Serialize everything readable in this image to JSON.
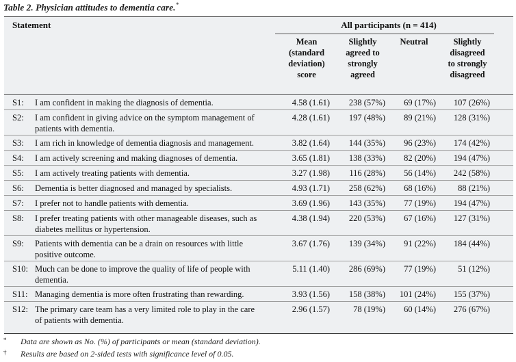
{
  "caption": {
    "text": "Table 2. Physician attitudes to dementia care.",
    "mark": "*"
  },
  "header": {
    "statement": "Statement",
    "group": "All participants (n = 414)",
    "columns": [
      [
        "Mean",
        "(standard",
        "deviation)",
        "score"
      ],
      [
        "Slightly",
        "agreed to",
        "strongly",
        "agreed"
      ],
      [
        "Neutral"
      ],
      [
        "Slightly",
        "disagreed",
        "to strongly",
        "disagreed"
      ]
    ]
  },
  "rows": [
    {
      "id": "S1:",
      "text": [
        "I am confident in making the diagnosis of dementia."
      ],
      "mean": "4.58 (1.61)",
      "agree": "238 (57%)",
      "neutral": "69 (17%)",
      "disagree": "107 (26%)"
    },
    {
      "id": "S2:",
      "text": [
        "I am confident in giving advice on the symptom management of",
        "patients with dementia."
      ],
      "mean": "4.28 (1.61)",
      "agree": "197 (48%)",
      "neutral": "89 (21%)",
      "disagree": "128 (31%)"
    },
    {
      "id": "S3:",
      "text": [
        "I am rich in knowledge of dementia diagnosis and management."
      ],
      "mean": "3.82 (1.64)",
      "agree": "144 (35%)",
      "neutral": "96 (23%)",
      "disagree": "174 (42%)"
    },
    {
      "id": "S4:",
      "text": [
        "I am actively screening and making diagnoses of dementia."
      ],
      "mean": "3.65 (1.81)",
      "agree": "138 (33%)",
      "neutral": "82 (20%)",
      "disagree": "194 (47%)"
    },
    {
      "id": "S5:",
      "text": [
        "I am actively treating patients with dementia."
      ],
      "mean": "3.27 (1.98)",
      "agree": "116 (28%)",
      "neutral": "56 (14%)",
      "disagree": "242 (58%)"
    },
    {
      "id": "S6:",
      "text": [
        "Dementia is better diagnosed and managed by specialists."
      ],
      "mean": "4.93 (1.71)",
      "agree": "258 (62%)",
      "neutral": "68 (16%)",
      "disagree": "88 (21%)"
    },
    {
      "id": "S7:",
      "text": [
        "I prefer not to handle patients with dementia."
      ],
      "mean": "3.69 (1.96)",
      "agree": "143 (35%)",
      "neutral": "77 (19%)",
      "disagree": "194 (47%)"
    },
    {
      "id": "S8:",
      "text": [
        "I prefer treating patients with other manageable diseases, such as",
        "diabetes mellitus or hypertension."
      ],
      "mean": "4.38 (1.94)",
      "agree": "220 (53%)",
      "neutral": "67 (16%)",
      "disagree": "127 (31%)"
    },
    {
      "id": "S9:",
      "text": [
        "Patients with dementia can be a drain on resources with little",
        "positive outcome."
      ],
      "mean": "3.67 (1.76)",
      "agree": "139 (34%)",
      "neutral": "91 (22%)",
      "disagree": "184 (44%)"
    },
    {
      "id": "S10:",
      "text": [
        "Much can be done to improve the quality of life of people with",
        "dementia."
      ],
      "mean": "5.11 (1.40)",
      "agree": "286 (69%)",
      "neutral": "77 (19%)",
      "disagree": "51 (12%)"
    },
    {
      "id": "S11:",
      "text": [
        "Managing dementia is more often frustrating than rewarding."
      ],
      "mean": "3.93 (1.56)",
      "agree": "158 (38%)",
      "neutral": "101 (24%)",
      "disagree": "155 (37%)"
    },
    {
      "id": "S12:",
      "text": [
        "The primary care team has a very limited role to play in the care",
        "of patients with dementia."
      ],
      "mean": "2.96 (1.57)",
      "agree": "78 (19%)",
      "neutral": "60 (14%)",
      "disagree": "276 (67%)"
    }
  ],
  "footnotes": [
    {
      "mark": "*",
      "text": "Data are shown as No. (%) of participants or mean (standard deviation)."
    },
    {
      "mark": "†",
      "text": "Results are based on 2-sided tests with significance level of 0.05."
    }
  ]
}
